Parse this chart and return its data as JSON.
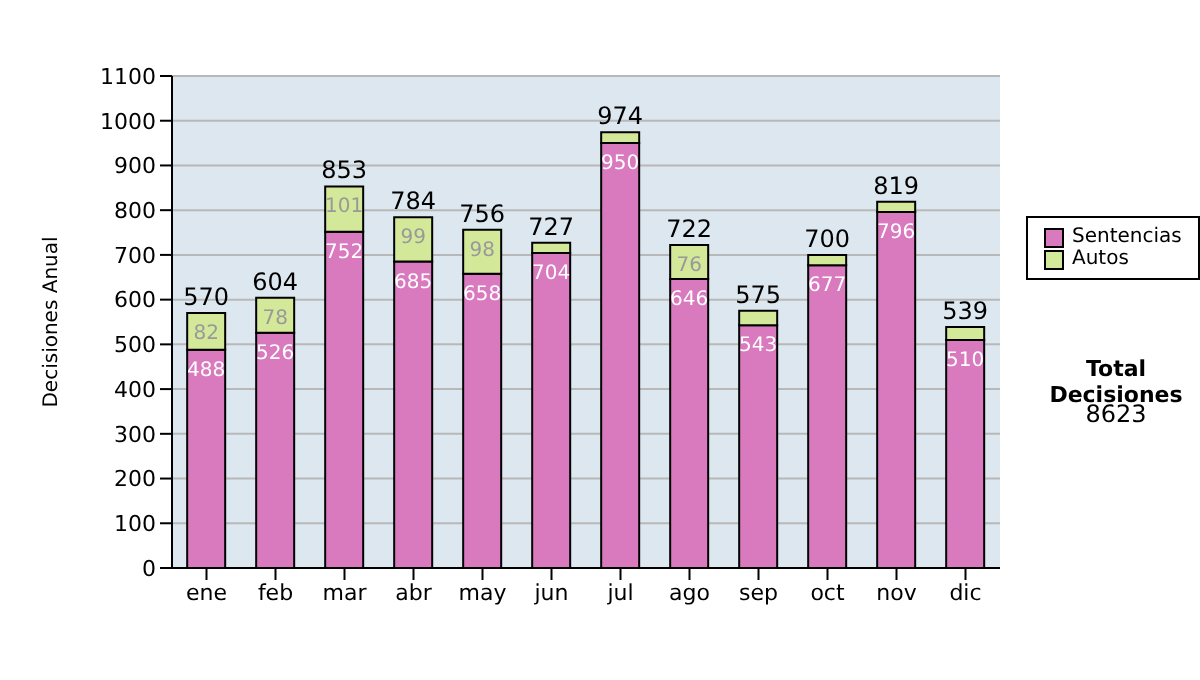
{
  "chart_data": {
    "type": "bar",
    "ylabel": "Decisiones Anual",
    "categories": [
      "ene",
      "feb",
      "mar",
      "abr",
      "may",
      "jun",
      "jul",
      "ago",
      "sep",
      "oct",
      "nov",
      "dic"
    ],
    "series": [
      {
        "name": "Sentencias",
        "color": "#d97abf",
        "values": [
          488,
          526,
          752,
          685,
          658,
          704,
          950,
          646,
          543,
          677,
          796,
          510
        ],
        "value_labels": [
          "488",
          "526",
          "752",
          "685",
          "658",
          "704",
          "950",
          "646",
          "543",
          "677",
          "796",
          "510"
        ]
      },
      {
        "name": "Autos",
        "color": "#d4e89a",
        "values": [
          82,
          78,
          101,
          99,
          98,
          23,
          24,
          76,
          32,
          23,
          23,
          29
        ],
        "value_labels": [
          "82",
          "78",
          "101",
          "99",
          "98",
          null,
          null,
          "76",
          null,
          null,
          null,
          null
        ]
      }
    ],
    "stacked": true,
    "totals": [
      "570",
      "604",
      "853",
      "784",
      "756",
      "727",
      "974",
      "722",
      "575",
      "700",
      "819",
      "539"
    ],
    "ylim": [
      0,
      1100
    ],
    "yticks": [
      0,
      100,
      200,
      300,
      400,
      500,
      600,
      700,
      800,
      900,
      1000,
      1100
    ],
    "grid": "y",
    "legend": "right",
    "annotations": [
      "Total Decisiones",
      "8623"
    ]
  }
}
